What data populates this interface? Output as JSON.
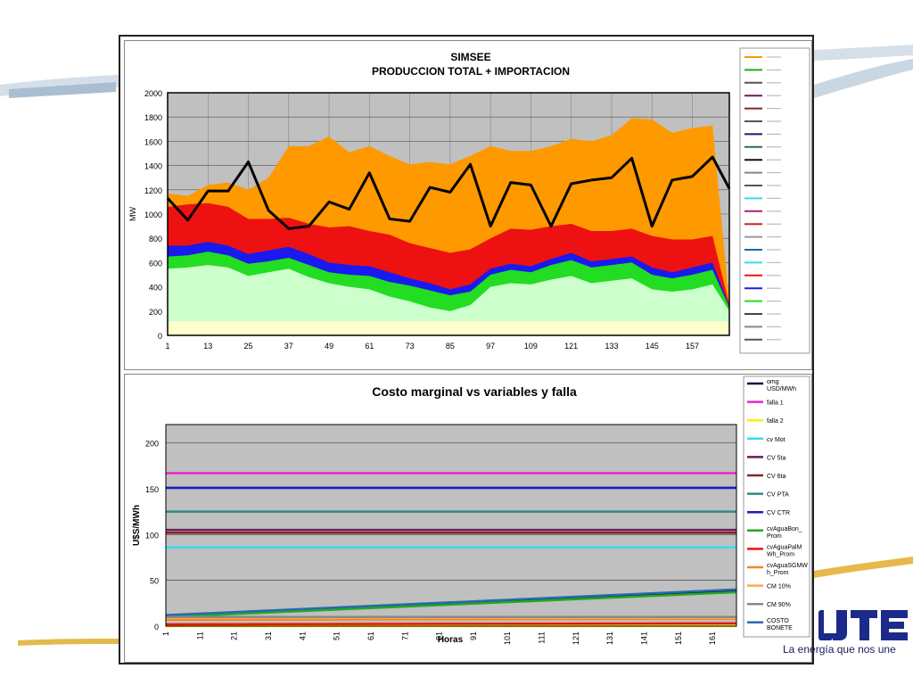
{
  "chart_data": [
    {
      "type": "area",
      "title": "SIMSEE",
      "subtitle": "PRODUCCION TOTAL + IMPORTACION",
      "xlabel": "",
      "ylabel": "MW",
      "ylim": [
        0,
        2000
      ],
      "xlim": [
        1,
        168
      ],
      "yticks": [
        "0",
        "200",
        "400",
        "600",
        "800",
        "1000",
        "1200",
        "1400",
        "1600",
        "1800",
        "2000"
      ],
      "xticks": [
        "1",
        "13",
        "25",
        "37",
        "49",
        "61",
        "73",
        "85",
        "97",
        "109",
        "121",
        "133",
        "145",
        "157"
      ],
      "grid": true,
      "legend": "right",
      "legend_note": "legend entries illegible",
      "x": [
        1,
        7,
        13,
        19,
        25,
        31,
        37,
        43,
        49,
        55,
        61,
        67,
        73,
        79,
        85,
        91,
        97,
        103,
        109,
        115,
        121,
        127,
        133,
        139,
        145,
        151,
        157,
        163,
        168
      ],
      "series": [
        {
          "color": "#ffffcc",
          "values": [
            115,
            115,
            115,
            115,
            115,
            115,
            115,
            115,
            115,
            115,
            115,
            115,
            115,
            115,
            115,
            115,
            115,
            115,
            115,
            115,
            115,
            115,
            115,
            115,
            115,
            115,
            115,
            115,
            115
          ]
        },
        {
          "color": "#ccffcc",
          "values": [
            550,
            560,
            580,
            560,
            490,
            520,
            550,
            480,
            430,
            400,
            380,
            320,
            280,
            230,
            200,
            250,
            400,
            430,
            420,
            460,
            490,
            430,
            450,
            470,
            380,
            360,
            380,
            420,
            200
          ]
        },
        {
          "color": "#22dd22",
          "values": [
            650,
            660,
            690,
            660,
            590,
            610,
            640,
            580,
            520,
            500,
            490,
            440,
            410,
            370,
            330,
            360,
            500,
            540,
            520,
            580,
            620,
            560,
            580,
            600,
            500,
            470,
            500,
            540,
            230
          ]
        },
        {
          "color": "#1a1aee",
          "values": [
            740,
            740,
            770,
            740,
            670,
            700,
            730,
            670,
            600,
            580,
            570,
            520,
            470,
            430,
            380,
            420,
            550,
            590,
            570,
            630,
            680,
            610,
            630,
            650,
            560,
            520,
            560,
            600,
            240
          ]
        },
        {
          "color": "#ee1111",
          "values": [
            1060,
            1080,
            1090,
            1060,
            960,
            960,
            970,
            920,
            890,
            900,
            860,
            830,
            760,
            720,
            680,
            710,
            800,
            880,
            870,
            900,
            920,
            860,
            860,
            880,
            820,
            790,
            790,
            820,
            250
          ]
        },
        {
          "color": "#ff9900",
          "values": [
            1170,
            1150,
            1240,
            1260,
            1200,
            1300,
            1560,
            1560,
            1640,
            1510,
            1560,
            1480,
            1410,
            1430,
            1410,
            1480,
            1560,
            1520,
            1520,
            1560,
            1620,
            1600,
            1650,
            1790,
            1780,
            1670,
            1710,
            1730,
            260
          ]
        }
      ],
      "line": {
        "color": "#000000",
        "values": [
          1130,
          950,
          1190,
          1190,
          1430,
          1030,
          880,
          900,
          1100,
          1040,
          1340,
          960,
          940,
          1220,
          1180,
          1410,
          900,
          1260,
          1240,
          900,
          1250,
          1280,
          1300,
          1460,
          900,
          1280,
          1310,
          1470,
          1210
        ]
      }
    },
    {
      "type": "line",
      "title": "Costo marginal  vs variables  y falla",
      "xlabel": "Horas",
      "ylabel": "U$S/MWh",
      "ylim": [
        0,
        220
      ],
      "xlim": [
        1,
        168
      ],
      "yticks": [
        "0",
        "50",
        "100",
        "150",
        "200"
      ],
      "xticks": [
        "1",
        "11",
        "21",
        "31",
        "41",
        "51",
        "61",
        "71",
        "81",
        "91",
        "101",
        "111",
        "121",
        "131",
        "141",
        "151",
        "161"
      ],
      "grid": true,
      "legend": "right",
      "series": [
        {
          "name": "omg USD/MWh",
          "color": "#0a0a4a",
          "x": [
            1,
            168
          ],
          "values": [
            11,
            39
          ]
        },
        {
          "name": "falla 1",
          "color": "#ee22cc",
          "x": [
            1,
            168
          ],
          "values": [
            167,
            167
          ]
        },
        {
          "name": "falla 2",
          "color": "#ffee00",
          "x": [
            1,
            168
          ],
          "values": [
            0,
            0
          ]
        },
        {
          "name": "cv Mot",
          "color": "#33ddee",
          "x": [
            1,
            168
          ],
          "values": [
            86,
            86
          ]
        },
        {
          "name": "CV 5ta",
          "color": "#6a1a5a",
          "x": [
            1,
            168
          ],
          "values": [
            105,
            105
          ]
        },
        {
          "name": "CV 6ta",
          "color": "#882222",
          "x": [
            1,
            168
          ],
          "values": [
            102,
            102
          ]
        },
        {
          "name": "CV PTA",
          "color": "#2a8a8a",
          "x": [
            1,
            168
          ],
          "values": [
            125,
            125
          ]
        },
        {
          "name": "CV CTR",
          "color": "#1a1acc",
          "x": [
            1,
            168
          ],
          "values": [
            151,
            151
          ]
        },
        {
          "name": "cvAguaBon_Prom",
          "color": "#22aa22",
          "x": [
            1,
            168
          ],
          "values": [
            10,
            37
          ]
        },
        {
          "name": "cvAguaPalMWh_Prom",
          "color": "#ee1111",
          "x": [
            1,
            168
          ],
          "values": [
            2,
            3
          ]
        },
        {
          "name": "cvAguaSGMWh_Prom",
          "color": "#ee8822",
          "x": [
            1,
            168
          ],
          "values": [
            7,
            8
          ]
        },
        {
          "name": "CM 10%",
          "color": "#ffaa44",
          "x": [
            1,
            168
          ],
          "values": [
            9,
            9
          ]
        },
        {
          "name": "CM 90%",
          "color": "#888888",
          "x": [
            1,
            168
          ],
          "values": [
            10,
            10
          ]
        },
        {
          "name": "COSTO BONETE",
          "color": "#2a6aaa",
          "x": [
            1,
            168
          ],
          "values": [
            12,
            40
          ]
        }
      ]
    }
  ],
  "logo": {
    "text": "UTE"
  },
  "slogan": "La energía que nos une"
}
